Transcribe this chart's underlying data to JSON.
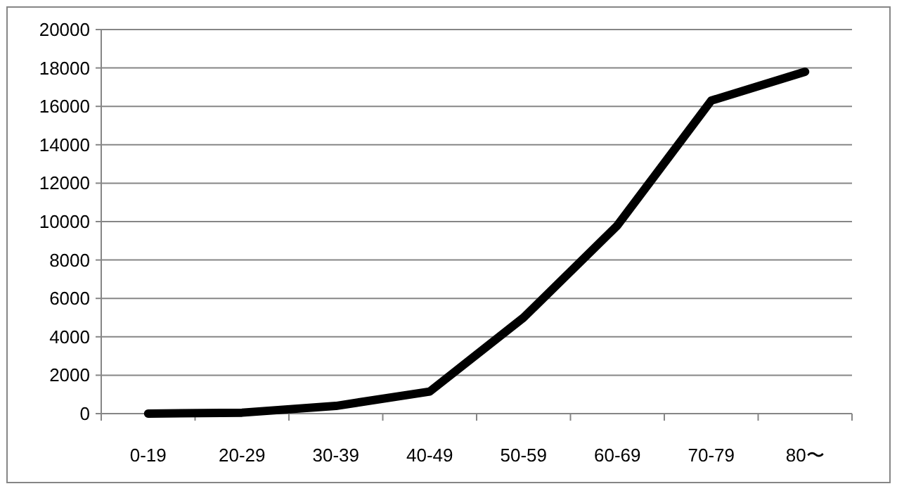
{
  "chart_data": {
    "type": "line",
    "categories": [
      "0-19",
      "20-29",
      "30-39",
      "40-49",
      "50-59",
      "60-69",
      "70-79",
      "80〜"
    ],
    "series": [
      {
        "color": "#000000",
        "values": [
          0,
          50,
          400,
          1150,
          5000,
          9800,
          16300,
          17800
        ]
      }
    ],
    "ylim": [
      0,
      20000
    ],
    "yticks": [
      0,
      2000,
      4000,
      6000,
      8000,
      10000,
      12000,
      14000,
      16000,
      18000,
      20000
    ],
    "grid": "y",
    "marker": "none",
    "line_style": "solid"
  }
}
